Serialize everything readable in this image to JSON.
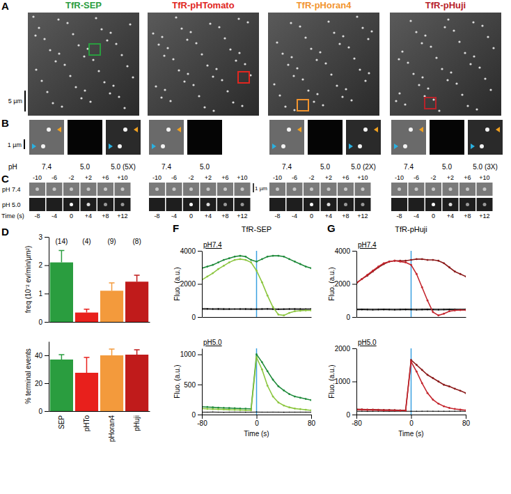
{
  "chart_data": [
    {
      "type": "bar",
      "categories": [
        "SEP",
        "pHTo",
        "pHoran4",
        "pHuji"
      ],
      "values": [
        2.1,
        0.33,
        1.1,
        1.42
      ],
      "errors": [
        0.42,
        0.12,
        0.28,
        0.23
      ],
      "colors": [
        "#2a9d3f",
        "#e8201c",
        "#f39a3c",
        "#c01b1b"
      ],
      "ylabel": "freq (10⁻² ev/min/µm²)",
      "ylim": [
        0,
        3
      ],
      "yticks": [
        0,
        1,
        2,
        3
      ],
      "annotations": [
        "(14)",
        "(4)",
        "(9)",
        "(8)"
      ],
      "tick_labels": "y"
    },
    {
      "type": "bar",
      "categories": [
        "SEP",
        "pHTo",
        "pHoran4",
        "pHuji"
      ],
      "values": [
        37,
        27.5,
        40,
        40.5
      ],
      "errors": [
        3.5,
        11,
        4.5,
        3.5
      ],
      "colors": [
        "#2a9d3f",
        "#e8201c",
        "#f39a3c",
        "#c01b1b"
      ],
      "ylabel": "% terminal events",
      "ylim": [
        0,
        50
      ],
      "yticks": [
        0,
        20,
        40
      ]
    },
    {
      "type": "line",
      "title": "TfR-SEP",
      "subtitle": "pH7.4",
      "ylabel": "Fluo. (a.u.)",
      "x": [
        -80,
        -72,
        -64,
        -56,
        -48,
        -40,
        -32,
        -24,
        -16,
        -8,
        0,
        8,
        16,
        24,
        32,
        40,
        48,
        56,
        64,
        72,
        80
      ],
      "xlim": [
        -80,
        80
      ],
      "ylim": [
        0,
        4000
      ],
      "yticks": [
        0,
        2000,
        4000
      ],
      "tick_labels": "y",
      "vlines": [
        0
      ],
      "series": [
        {
          "color": "#000000",
          "values": [
            520,
            510,
            500,
            510,
            505,
            500,
            495,
            500,
            505,
            500,
            495,
            500,
            505,
            500,
            490,
            495,
            500,
            505,
            500,
            495,
            500
          ]
        },
        {
          "color": "#000000",
          "values": [
            460,
            470,
            465,
            460,
            455,
            460,
            470,
            465,
            460,
            455,
            460,
            465,
            470,
            460,
            455,
            460,
            465,
            460,
            455,
            460,
            465
          ]
        },
        {
          "color": "#1e8a3a",
          "values": [
            2950,
            3050,
            3150,
            3300,
            3450,
            3550,
            3650,
            3700,
            3650,
            3450,
            3350,
            3500,
            3650,
            3700,
            3700,
            3650,
            3500,
            3350,
            3200,
            3050,
            2950
          ]
        },
        {
          "color": "#8cc63f",
          "values": [
            2250,
            2450,
            2650,
            2900,
            3100,
            3300,
            3450,
            3500,
            3450,
            3300,
            2800,
            2100,
            1300,
            600,
            150,
            100,
            250,
            350,
            380,
            400,
            400
          ]
        }
      ]
    },
    {
      "type": "line",
      "subtitle": "pH5.0",
      "xlabel": "Time (s)",
      "ylabel": "Fluo. (a.u.)",
      "x": [
        -80,
        -72,
        -64,
        -56,
        -48,
        -40,
        -32,
        -24,
        -16,
        -8,
        0,
        8,
        16,
        24,
        32,
        40,
        48,
        56,
        64,
        72,
        80
      ],
      "xlim": [
        -80,
        80
      ],
      "xticks": [
        -80,
        0,
        80
      ],
      "ylim": [
        0,
        1100
      ],
      "yticks": [
        0,
        500,
        1000
      ],
      "vlines": [
        0
      ],
      "series": [
        {
          "color": "#000000",
          "values": [
            40,
            40,
            42,
            40,
            38,
            40,
            41,
            40,
            39,
            40,
            42,
            40,
            40,
            41,
            40,
            39,
            40,
            40,
            41,
            40,
            40
          ]
        },
        {
          "color": "#1e8a3a",
          "values": [
            130,
            125,
            120,
            115,
            110,
            108,
            105,
            100,
            98,
            95,
            1000,
            870,
            720,
            580,
            470,
            400,
            340,
            300,
            280,
            260,
            240
          ]
        },
        {
          "color": "#8cc63f",
          "values": [
            100,
            95,
            90,
            88,
            85,
            80,
            78,
            75,
            72,
            70,
            950,
            750,
            480,
            300,
            200,
            150,
            120,
            100,
            90,
            80,
            70
          ]
        }
      ]
    },
    {
      "type": "line",
      "title": "TfR-pHuji",
      "subtitle": "pH7.4",
      "ylabel": "Fluo. (a.u.)",
      "x": [
        -80,
        -72,
        -64,
        -56,
        -48,
        -40,
        -32,
        -24,
        -16,
        -8,
        0,
        8,
        16,
        24,
        32,
        40,
        48,
        56,
        64,
        72,
        80
      ],
      "xlim": [
        -80,
        80
      ],
      "ylim": [
        0,
        4000
      ],
      "yticks": [
        0,
        2000,
        4000
      ],
      "tick_labels": "y",
      "vlines": [
        0
      ],
      "series": [
        {
          "color": "#000000",
          "values": [
            480,
            485,
            480,
            475,
            480,
            485,
            480,
            475,
            480,
            485,
            480,
            475,
            480,
            485,
            480,
            475,
            480,
            485,
            480,
            475,
            480
          ]
        },
        {
          "color": "#000000",
          "values": [
            430,
            435,
            430,
            425,
            430,
            435,
            430,
            425,
            430,
            435,
            430,
            425,
            430,
            435,
            430,
            425,
            430,
            435,
            430,
            425,
            430
          ]
        },
        {
          "color": "#8b1a1a",
          "values": [
            2050,
            2300,
            2500,
            2750,
            3000,
            3200,
            3350,
            3400,
            3400,
            3400,
            3450,
            3500,
            3500,
            3450,
            3450,
            3400,
            3250,
            3000,
            2750,
            2600,
            2450
          ]
        },
        {
          "color": "#c4262e",
          "values": [
            2050,
            2300,
            2550,
            2800,
            3050,
            3250,
            3350,
            3400,
            3350,
            3300,
            3150,
            2600,
            1800,
            1000,
            300,
            100,
            200,
            350,
            400,
            420,
            420
          ]
        }
      ]
    },
    {
      "type": "line",
      "subtitle": "pH5.0",
      "xlabel": "Time (s)",
      "ylabel": "Fluo. (a.u.)",
      "x": [
        -80,
        -72,
        -64,
        -56,
        -48,
        -40,
        -32,
        -24,
        -16,
        -8,
        0,
        8,
        16,
        24,
        32,
        40,
        48,
        56,
        64,
        72,
        80
      ],
      "xlim": [
        -80,
        80
      ],
      "xticks": [
        -80,
        0,
        80
      ],
      "ylim": [
        0,
        2000
      ],
      "yticks": [
        0,
        1000,
        2000
      ],
      "vlines": [
        0
      ],
      "series": [
        {
          "color": "#000000",
          "values": [
            100,
            100,
            98,
            100,
            102,
            100,
            99,
            100,
            101,
            100,
            100,
            99,
            100,
            101,
            100,
            100,
            99,
            100,
            100,
            101,
            100
          ]
        },
        {
          "color": "#8b1a1a",
          "values": [
            160,
            155,
            150,
            150,
            145,
            140,
            140,
            135,
            130,
            130,
            1650,
            1500,
            1350,
            1200,
            1100,
            1000,
            900,
            850,
            780,
            720,
            650
          ]
        },
        {
          "color": "#c4262e",
          "values": [
            150,
            145,
            140,
            140,
            135,
            130,
            130,
            125,
            120,
            120,
            1600,
            1300,
            950,
            650,
            450,
            330,
            250,
            200,
            170,
            150,
            130
          ]
        }
      ]
    }
  ],
  "figure": {
    "panel_labels": [
      "A",
      "B",
      "C",
      "D",
      "F",
      "G"
    ],
    "constructs": [
      {
        "name": "TfR-SEP",
        "color": "#2a9d3f",
        "b_labels": [
          "7.4",
          "5.0",
          "5.0 (5X)"
        ]
      },
      {
        "name": "TfR-pHTomato",
        "color": "#e0261f",
        "b_labels": [
          "7.4",
          "5.0"
        ]
      },
      {
        "name": "TfR-pHoran4",
        "color": "#f2942e",
        "b_labels": [
          "7.4",
          "5.0",
          "5.0 (2X)"
        ]
      },
      {
        "name": "TfR-pHuji",
        "color": "#b8232a",
        "b_labels": [
          "7.4",
          "5.0",
          "5.0 (3X)"
        ]
      }
    ],
    "scale_a": "5 µm",
    "scale_b": "1 µm",
    "scale_c": "1 µm",
    "b_ph": "pH",
    "c_frames": [
      "-10",
      "-6",
      "-2",
      "+2",
      "+6",
      "+10"
    ],
    "c_rows": [
      "pH 7.4",
      "pH 5.0"
    ],
    "c_time_label": "Time (s)",
    "c_times": [
      "-8",
      "-4",
      "0",
      "+4",
      "+8",
      "+12"
    ]
  }
}
